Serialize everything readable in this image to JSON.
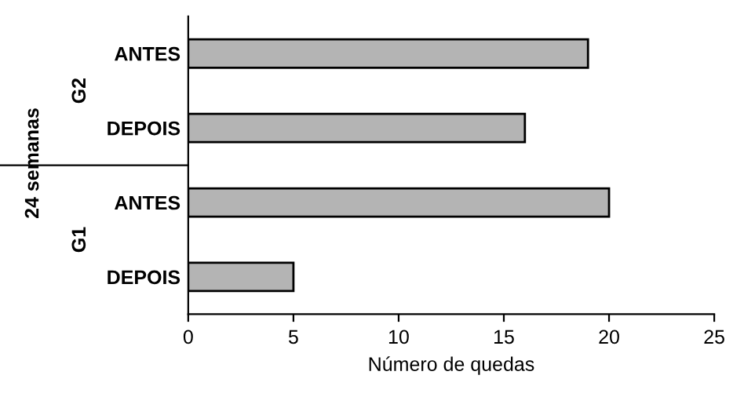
{
  "chart_data": {
    "type": "bar",
    "orientation": "horizontal",
    "categories": [
      "ANTES",
      "DEPOIS",
      "ANTES",
      "DEPOIS"
    ],
    "values": [
      19,
      16,
      20,
      5
    ],
    "color": "#b4b4b4",
    "xlim": [
      0,
      25
    ],
    "xticks": [
      0,
      5,
      10,
      15,
      20,
      25
    ],
    "xlabel": "Número de quedas",
    "ylabel": "24 semanas",
    "annotations": [
      "G2",
      "G1"
    ],
    "grid": false
  }
}
